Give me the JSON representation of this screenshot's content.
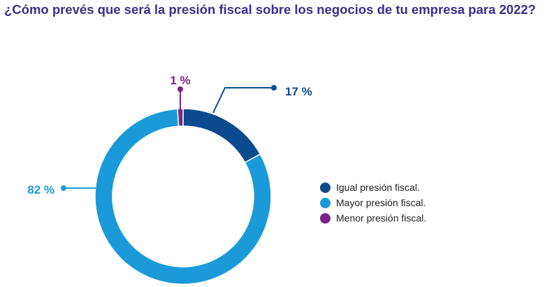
{
  "title": "¿Cómo prevés que será la presión fiscal sobre los negocios de tu empresa para 2022?",
  "chart_data": {
    "type": "pie",
    "donut": true,
    "title": "¿Cómo prevés que será la presión fiscal sobre los negocios de tu empresa para 2022?",
    "categories": [
      "Igual presión fiscal.",
      "Mayor presión fiscal.",
      "Menor presión fiscal."
    ],
    "values": [
      17,
      82,
      1
    ],
    "data_labels": [
      "17 %",
      "82 %",
      "1 %"
    ],
    "colors": [
      "#0b4a8f",
      "#1a9ad8",
      "#7a2584"
    ],
    "legend_position": "right"
  }
}
